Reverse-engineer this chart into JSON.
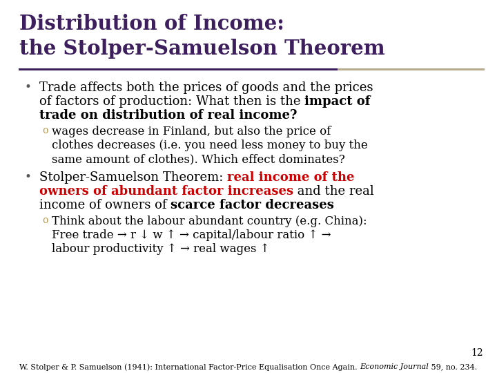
{
  "title_line1": "Distribution of Income:",
  "title_line2": "the Stolper-Samuelson Theorem",
  "title_color": "#3d1f5e",
  "sep_color_left": "#3d1f5e",
  "sep_color_right": "#b5a98e",
  "bg_color": "#ffffff",
  "page_number": "12",
  "bullet_color": "#555555",
  "sub_bullet_color": "#b8964a",
  "body_color": "#000000",
  "red_color": "#cc0000",
  "figsize": [
    7.2,
    5.4
  ],
  "dpi": 100
}
